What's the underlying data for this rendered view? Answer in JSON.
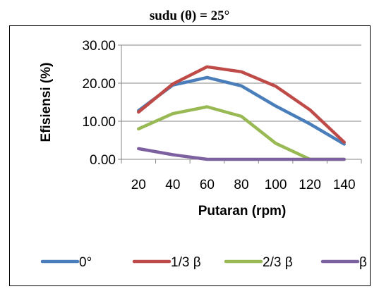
{
  "chart_data": {
    "type": "line",
    "title": "sudu (θ) = 25°",
    "xlabel": "Putaran (rpm)",
    "ylabel": "Efisiensi (%)",
    "categories": [
      "20",
      "40",
      "60",
      "80",
      "100",
      "120",
      "140"
    ],
    "ylim": [
      0,
      30
    ],
    "yticks": [
      "0.00",
      "10.00",
      "20.00",
      "30.00"
    ],
    "grid": "horizontal",
    "legend_position": "bottom",
    "series": [
      {
        "name": "0°",
        "color": "#4a7ebb",
        "values": [
          12.8,
          19.5,
          21.5,
          19.3,
          14.0,
          9.3,
          4.0
        ]
      },
      {
        "name": "1/3 β",
        "color": "#be4b48",
        "values": [
          12.4,
          19.8,
          24.3,
          23.0,
          19.2,
          13.0,
          4.5
        ]
      },
      {
        "name": "2/3 β",
        "color": "#98b954",
        "values": [
          8.0,
          12.0,
          13.8,
          11.3,
          4.2,
          0.0,
          0.0
        ]
      },
      {
        "name": "β",
        "color": "#7d60a0",
        "values": [
          2.8,
          1.2,
          0.0,
          0.0,
          0.0,
          0.0,
          0.0
        ]
      }
    ]
  }
}
